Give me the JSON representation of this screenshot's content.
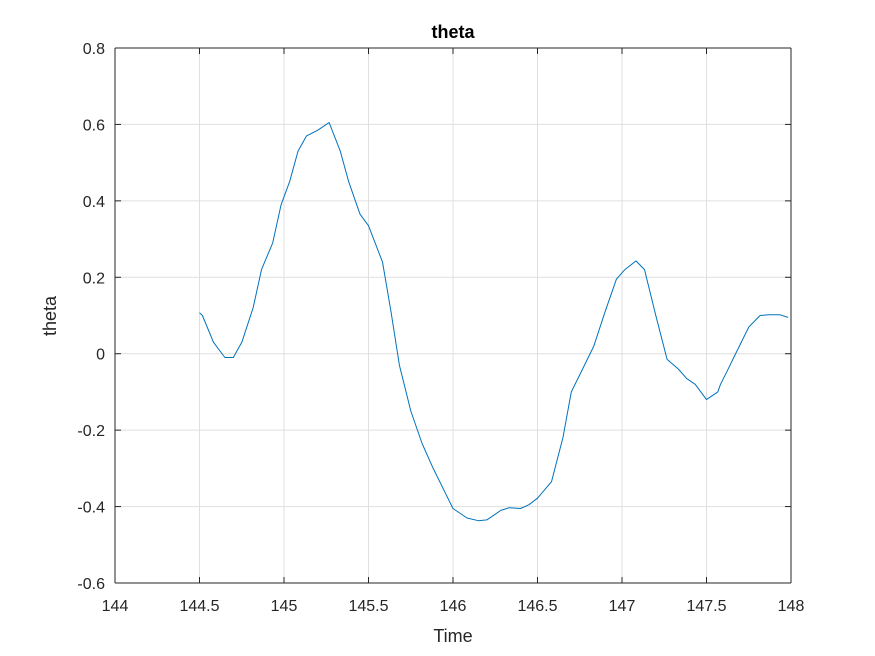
{
  "chart_data": {
    "type": "line",
    "title": "theta",
    "xlabel": "Time",
    "ylabel": "theta",
    "xlim": [
      144,
      148
    ],
    "ylim": [
      -0.6,
      0.8
    ],
    "xticks": [
      144,
      144.5,
      145,
      145.5,
      146,
      146.5,
      147,
      147.5,
      148
    ],
    "xtick_labels": [
      "144",
      "144.5",
      "145",
      "145.5",
      "146",
      "146.5",
      "147",
      "147.5",
      "148"
    ],
    "yticks": [
      -0.6,
      -0.4,
      -0.2,
      0,
      0.2,
      0.4,
      0.6,
      0.8
    ],
    "ytick_labels": [
      "-0.6",
      "-0.4",
      "-0.2",
      "0",
      "0.2",
      "0.4",
      "0.6",
      "0.8"
    ],
    "grid": true,
    "series": [
      {
        "color": "#0072bd",
        "x": [
          144.5,
          144.517,
          144.583,
          144.65,
          144.7,
          144.75,
          144.817,
          144.867,
          144.933,
          144.983,
          145.033,
          145.083,
          145.133,
          145.2,
          145.267,
          145.333,
          145.383,
          145.45,
          145.5,
          145.583,
          145.633,
          145.683,
          145.75,
          145.817,
          145.883,
          145.95,
          146.0,
          146.083,
          146.15,
          146.2,
          146.25,
          146.283,
          146.333,
          146.4,
          146.45,
          146.5,
          146.583,
          146.65,
          146.7,
          146.767,
          146.833,
          146.9,
          146.967,
          147.017,
          147.083,
          147.133,
          147.2,
          147.267,
          147.333,
          147.383,
          147.433,
          147.5,
          147.567,
          147.583,
          147.617,
          147.667,
          147.75,
          147.817,
          147.867,
          147.933,
          147.983
        ],
        "y": [
          0.107,
          0.1,
          0.03,
          -0.01,
          -0.01,
          0.03,
          0.12,
          0.22,
          0.29,
          0.39,
          0.45,
          0.53,
          0.57,
          0.585,
          0.605,
          0.53,
          0.45,
          0.365,
          0.335,
          0.24,
          0.11,
          -0.03,
          -0.15,
          -0.235,
          -0.3,
          -0.36,
          -0.405,
          -0.43,
          -0.437,
          -0.435,
          -0.42,
          -0.41,
          -0.403,
          -0.405,
          -0.395,
          -0.378,
          -0.335,
          -0.22,
          -0.1,
          -0.04,
          0.02,
          0.11,
          0.195,
          0.22,
          0.243,
          0.22,
          0.1,
          -0.015,
          -0.04,
          -0.065,
          -0.08,
          -0.12,
          -0.1,
          -0.08,
          -0.05,
          -0.005,
          0.07,
          0.1,
          0.102,
          0.102,
          0.095
        ]
      }
    ]
  }
}
